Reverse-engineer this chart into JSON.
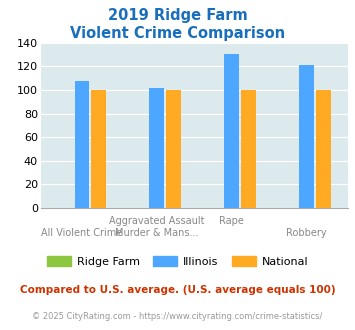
{
  "title_line1": "2019 Ridge Farm",
  "title_line2": "Violent Crime Comparison",
  "groups": [
    {
      "label_row1": "",
      "label_row2": "All Violent Crime",
      "ridge_farm": 0,
      "illinois": 108,
      "national": 100
    },
    {
      "label_row1": "Aggravated Assault",
      "label_row2": "Murder & Mans...",
      "ridge_farm": 0,
      "illinois": 102,
      "national": 100
    },
    {
      "label_row1": "Rape",
      "label_row2": "",
      "ridge_farm": 0,
      "illinois": 131,
      "national": 100
    },
    {
      "label_row1": "",
      "label_row2": "Robbery",
      "ridge_farm": 0,
      "illinois": 121,
      "national": 100
    }
  ],
  "color_ridge_farm": "#8dc63f",
  "color_illinois": "#4da6ff",
  "color_national": "#ffaa22",
  "title_color": "#1a6fbd",
  "plot_bg": "#dce9ed",
  "ylim": [
    0,
    140
  ],
  "yticks": [
    0,
    20,
    40,
    60,
    80,
    100,
    120,
    140
  ],
  "footnote1": "Compared to U.S. average. (U.S. average equals 100)",
  "footnote2": "© 2025 CityRating.com - https://www.cityrating.com/crime-statistics/",
  "footnote1_color": "#cc3300",
  "footnote2_color": "#999999",
  "label_row1_color": "#888888",
  "label_row2_color": "#888888"
}
